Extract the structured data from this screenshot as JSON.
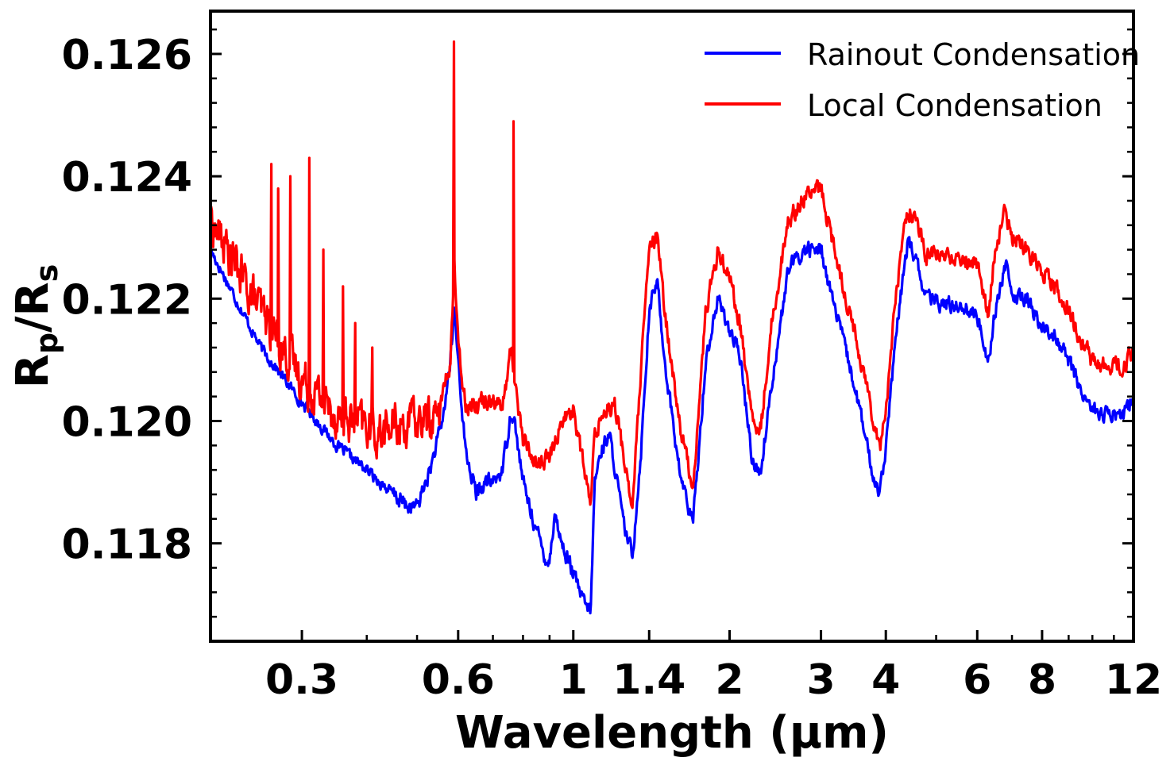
{
  "chart_data": {
    "type": "line",
    "title": "",
    "xlabel": "Wavelength (μm)",
    "ylabel_main": "R",
    "ylabel_sub1": "p",
    "ylabel_slash": "/R",
    "ylabel_sub2": "s",
    "xscale": "log",
    "xlim": [
      0.2,
      12
    ],
    "ylim": [
      0.1164,
      0.1267
    ],
    "xticks": [
      0.3,
      0.6,
      1,
      1.4,
      2,
      3,
      4,
      6,
      8,
      12
    ],
    "xtick_labels": [
      "0.3",
      "0.6",
      "1",
      "1.4",
      "2",
      "3",
      "4",
      "6",
      "8",
      "12"
    ],
    "yticks": [
      0.118,
      0.12,
      0.122,
      0.124,
      0.126
    ],
    "ytick_labels": [
      "0.118",
      "0.120",
      "0.122",
      "0.124",
      "0.126"
    ],
    "legend_position": "top-right",
    "series": [
      {
        "name": "Rainout Condensation",
        "color": "#0000ff",
        "x": [
          0.2,
          0.25,
          0.3,
          0.35,
          0.4,
          0.45,
          0.48,
          0.5,
          0.53,
          0.56,
          0.58,
          0.59,
          0.6,
          0.62,
          0.65,
          0.68,
          0.7,
          0.73,
          0.76,
          0.77,
          0.8,
          0.85,
          0.88,
          0.9,
          0.92,
          0.95,
          1.0,
          1.05,
          1.08,
          1.1,
          1.13,
          1.17,
          1.2,
          1.25,
          1.3,
          1.35,
          1.4,
          1.45,
          1.5,
          1.6,
          1.7,
          1.8,
          1.9,
          2.0,
          2.1,
          2.2,
          2.25,
          2.3,
          2.4,
          2.6,
          2.8,
          3.0,
          3.2,
          3.5,
          3.8,
          3.9,
          4.0,
          4.2,
          4.4,
          4.5,
          4.8,
          5.2,
          5.6,
          6.0,
          6.3,
          6.5,
          6.8,
          7.0,
          7.5,
          8.0,
          8.5,
          9.0,
          9.5,
          10.0,
          10.5,
          11.0,
          11.5,
          12.0
        ],
        "values": [
          0.1228,
          0.1212,
          0.1203,
          0.1196,
          0.1192,
          0.1188,
          0.1186,
          0.1186,
          0.1192,
          0.12,
          0.121,
          0.1218,
          0.121,
          0.1195,
          0.1188,
          0.119,
          0.119,
          0.1192,
          0.1202,
          0.12,
          0.119,
          0.1182,
          0.1178,
          0.1177,
          0.1185,
          0.118,
          0.1175,
          0.117,
          0.1169,
          0.119,
          0.1195,
          0.1198,
          0.1193,
          0.1183,
          0.1178,
          0.1195,
          0.1218,
          0.1223,
          0.121,
          0.1192,
          0.1183,
          0.121,
          0.122,
          0.1215,
          0.121,
          0.1195,
          0.1192,
          0.1192,
          0.1205,
          0.1225,
          0.1228,
          0.1228,
          0.1218,
          0.1205,
          0.119,
          0.1189,
          0.1196,
          0.1215,
          0.1229,
          0.1228,
          0.122,
          0.1219,
          0.1219,
          0.1217,
          0.121,
          0.1218,
          0.1226,
          0.122,
          0.122,
          0.1215,
          0.1214,
          0.121,
          0.1205,
          0.1202,
          0.1201,
          0.1201,
          0.1201,
          0.1204
        ],
        "noise": 0.00022
      },
      {
        "name": "Local Condensation",
        "color": "#ff0000",
        "x": [
          0.2,
          0.25,
          0.3,
          0.35,
          0.4,
          0.42,
          0.45,
          0.5,
          0.55,
          0.58,
          0.59,
          0.6,
          0.62,
          0.65,
          0.7,
          0.73,
          0.76,
          0.77,
          0.8,
          0.85,
          0.9,
          0.95,
          1.0,
          1.05,
          1.08,
          1.1,
          1.15,
          1.2,
          1.3,
          1.35,
          1.4,
          1.45,
          1.5,
          1.6,
          1.7,
          1.8,
          1.9,
          2.0,
          2.1,
          2.2,
          2.25,
          2.3,
          2.4,
          2.6,
          2.8,
          3.0,
          3.2,
          3.5,
          3.8,
          3.9,
          4.0,
          4.2,
          4.4,
          4.5,
          4.8,
          5.2,
          5.6,
          6.0,
          6.3,
          6.5,
          6.8,
          7.0,
          7.5,
          8.0,
          8.5,
          9.0,
          9.5,
          10.0,
          10.5,
          11.0,
          11.5,
          12.0
        ],
        "values": [
          0.1233,
          0.1218,
          0.1207,
          0.1201,
          0.1199,
          0.1198,
          0.1199,
          0.12,
          0.1201,
          0.121,
          0.1226,
          0.1212,
          0.1203,
          0.1203,
          0.1204,
          0.1202,
          0.1212,
          0.1207,
          0.1197,
          0.1193,
          0.1194,
          0.12,
          0.1202,
          0.1192,
          0.1186,
          0.1198,
          0.1202,
          0.1203,
          0.1186,
          0.1208,
          0.1228,
          0.123,
          0.1218,
          0.12,
          0.1189,
          0.1218,
          0.1228,
          0.1224,
          0.1215,
          0.1202,
          0.1198,
          0.1199,
          0.1215,
          0.1233,
          0.1237,
          0.1238,
          0.1227,
          0.1214,
          0.12,
          0.1196,
          0.1202,
          0.1222,
          0.1235,
          0.1234,
          0.1227,
          0.1227,
          0.1226,
          0.1226,
          0.1217,
          0.1228,
          0.1234,
          0.123,
          0.1228,
          0.1225,
          0.1222,
          0.1218,
          0.1213,
          0.121,
          0.1209,
          0.1209,
          0.1209,
          0.1211
        ],
        "noise": 0.00025,
        "spikes": [
          {
            "x": 0.262,
            "y": 0.1242
          },
          {
            "x": 0.27,
            "y": 0.1238
          },
          {
            "x": 0.285,
            "y": 0.124
          },
          {
            "x": 0.31,
            "y": 0.1243
          },
          {
            "x": 0.33,
            "y": 0.1228
          },
          {
            "x": 0.36,
            "y": 0.1222
          },
          {
            "x": 0.38,
            "y": 0.1216
          },
          {
            "x": 0.41,
            "y": 0.1212
          },
          {
            "x": 0.589,
            "y": 0.1262
          },
          {
            "x": 0.767,
            "y": 0.1249
          }
        ]
      }
    ]
  }
}
